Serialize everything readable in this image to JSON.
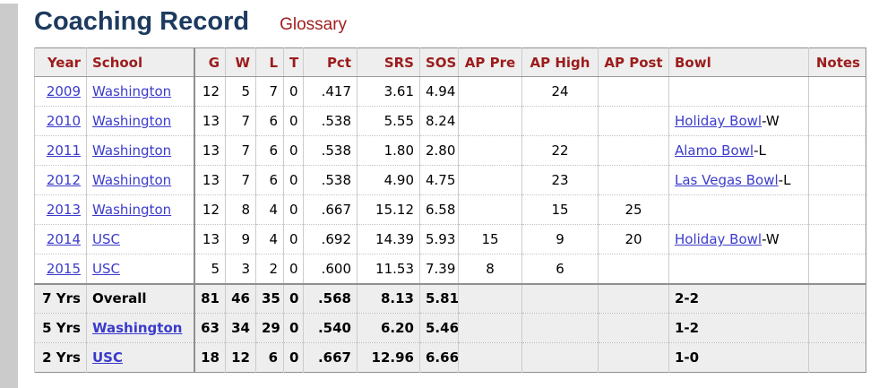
{
  "page": {
    "title": "Coaching Record",
    "glossary_label": "Glossary"
  },
  "colors": {
    "title_navy": "#1d3a5f",
    "header_maroon": "#9c1c1c",
    "glossary_red": "#a31f1f",
    "link_blue": "#3b3bcc",
    "header_bg": "#eeeeee",
    "totals_bg": "#eeeeee",
    "gutter_gray": "#cbcbcb"
  },
  "table": {
    "columns": [
      "Year",
      "School",
      "G",
      "W",
      "L",
      "T",
      "Pct",
      "SRS",
      "SOS",
      "AP Pre",
      "AP High",
      "AP Post",
      "Bowl",
      "Notes"
    ],
    "rows": [
      {
        "year": "2009",
        "school": "Washington",
        "g": "12",
        "w": "5",
        "l": "7",
        "t": "0",
        "pct": ".417",
        "srs": "3.61",
        "sos": "4.94",
        "ap_pre": "",
        "ap_high": "24",
        "ap_post": "",
        "bowl_link": "",
        "bowl_result": "",
        "notes": ""
      },
      {
        "year": "2010",
        "school": "Washington",
        "g": "13",
        "w": "7",
        "l": "6",
        "t": "0",
        "pct": ".538",
        "srs": "5.55",
        "sos": "8.24",
        "ap_pre": "",
        "ap_high": "",
        "ap_post": "",
        "bowl_link": "Holiday Bowl",
        "bowl_result": "-W",
        "notes": ""
      },
      {
        "year": "2011",
        "school": "Washington",
        "g": "13",
        "w": "7",
        "l": "6",
        "t": "0",
        "pct": ".538",
        "srs": "1.80",
        "sos": "2.80",
        "ap_pre": "",
        "ap_high": "22",
        "ap_post": "",
        "bowl_link": "Alamo Bowl",
        "bowl_result": "-L",
        "notes": ""
      },
      {
        "year": "2012",
        "school": "Washington",
        "g": "13",
        "w": "7",
        "l": "6",
        "t": "0",
        "pct": ".538",
        "srs": "4.90",
        "sos": "4.75",
        "ap_pre": "",
        "ap_high": "23",
        "ap_post": "",
        "bowl_link": "Las Vegas Bowl",
        "bowl_result": "-L",
        "notes": ""
      },
      {
        "year": "2013",
        "school": "Washington",
        "g": "12",
        "w": "8",
        "l": "4",
        "t": "0",
        "pct": ".667",
        "srs": "15.12",
        "sos": "6.58",
        "ap_pre": "",
        "ap_high": "15",
        "ap_post": "25",
        "bowl_link": "",
        "bowl_result": "",
        "notes": ""
      },
      {
        "year": "2014",
        "school": "USC",
        "g": "13",
        "w": "9",
        "l": "4",
        "t": "0",
        "pct": ".692",
        "srs": "14.39",
        "sos": "5.93",
        "ap_pre": "15",
        "ap_high": "9",
        "ap_post": "20",
        "bowl_link": "Holiday Bowl",
        "bowl_result": "-W",
        "notes": ""
      },
      {
        "year": "2015",
        "school": "USC",
        "g": "5",
        "w": "3",
        "l": "2",
        "t": "0",
        "pct": ".600",
        "srs": "11.53",
        "sos": "7.39",
        "ap_pre": "8",
        "ap_high": "6",
        "ap_post": "",
        "bowl_link": "",
        "bowl_result": "",
        "notes": ""
      }
    ],
    "totals": [
      {
        "span": "7 Yrs",
        "school": "Overall",
        "school_is_link": false,
        "g": "81",
        "w": "46",
        "l": "35",
        "t": "0",
        "pct": ".568",
        "srs": "8.13",
        "sos": "5.81",
        "ap_pre": "",
        "ap_high": "",
        "ap_post": "",
        "bowl": "2-2",
        "notes": ""
      },
      {
        "span": "5 Yrs",
        "school": "Washington",
        "school_is_link": true,
        "g": "63",
        "w": "34",
        "l": "29",
        "t": "0",
        "pct": ".540",
        "srs": "6.20",
        "sos": "5.46",
        "ap_pre": "",
        "ap_high": "",
        "ap_post": "",
        "bowl": "1-2",
        "notes": ""
      },
      {
        "span": "2 Yrs",
        "school": "USC",
        "school_is_link": true,
        "g": "18",
        "w": "12",
        "l": "6",
        "t": "0",
        "pct": ".667",
        "srs": "12.96",
        "sos": "6.66",
        "ap_pre": "",
        "ap_high": "",
        "ap_post": "",
        "bowl": "1-0",
        "notes": ""
      }
    ]
  }
}
